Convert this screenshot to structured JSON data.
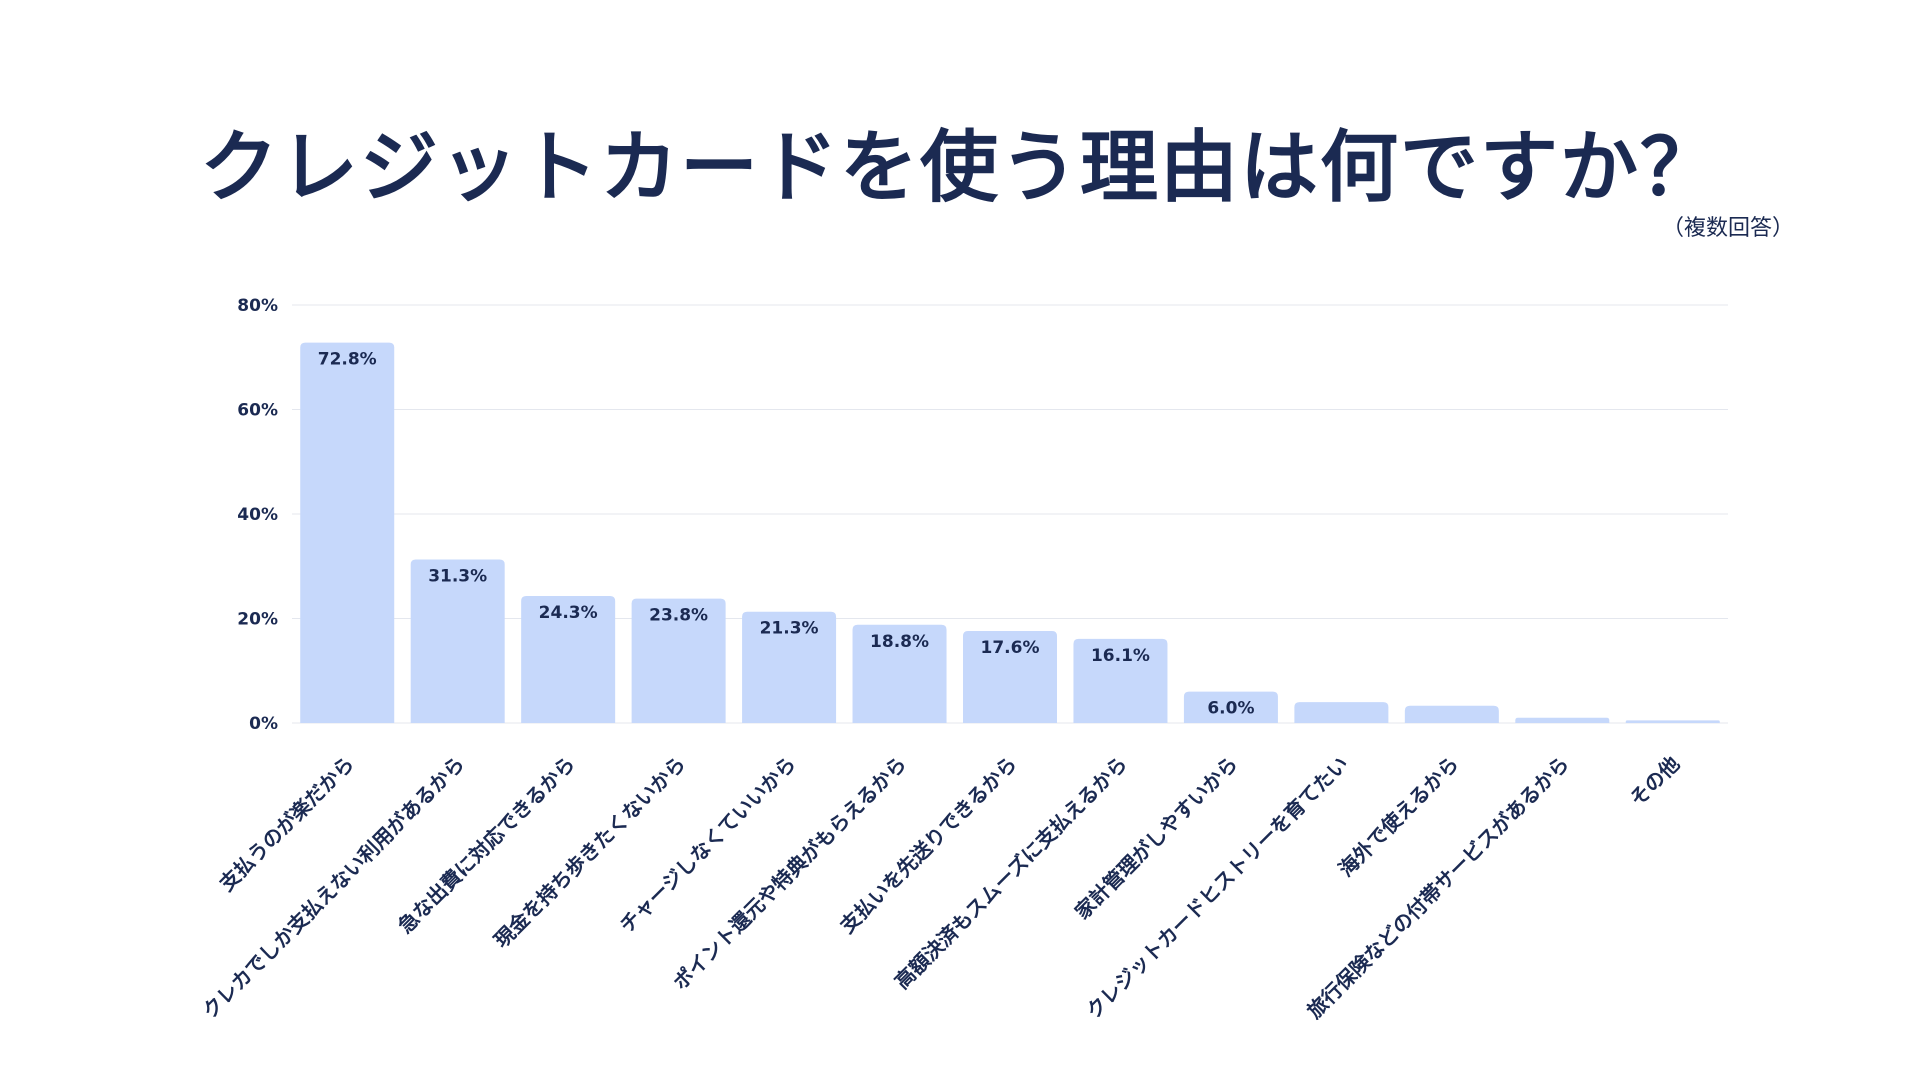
{
  "chart_data": {
    "type": "bar",
    "title": "クレジットカードを使う理由は何ですか？",
    "subtitle": "（複数回答）",
    "xlabel": "",
    "ylabel": "",
    "ylim": [
      0,
      80
    ],
    "y_ticks": [
      "0%",
      "20%",
      "40%",
      "60%",
      "80%"
    ],
    "y_tick_values": [
      0,
      20,
      40,
      60,
      80
    ],
    "grid": true,
    "legend": "none",
    "bar_color": "#c6d8fb",
    "text_color": "#1b2a52",
    "categories": [
      "支払うのが楽だから",
      "クレカでしか支払えない利用があるから",
      "急な出費に対応できるから",
      "現金を持ち歩きたくないから",
      "チャージしなくていいから",
      "ポイント還元や特典がもらえるから",
      "支払いを先送りできるから",
      "高額決済もスムーズに支払えるから",
      "家計管理がしやすいから",
      "クレジットカードヒストリーを育てたい",
      "海外で使えるから",
      "旅行保険などの付帯サービスがあるから",
      "その他"
    ],
    "values": [
      72.8,
      31.3,
      24.3,
      23.8,
      21.3,
      18.8,
      17.6,
      16.1,
      6.0,
      4.0,
      3.3,
      1.0,
      0.5
    ],
    "value_labels": [
      "72.8%",
      "31.3%",
      "24.3%",
      "23.8%",
      "21.3%",
      "18.8%",
      "17.6%",
      "16.1%",
      "6.0%",
      "",
      "",
      "",
      ""
    ]
  }
}
